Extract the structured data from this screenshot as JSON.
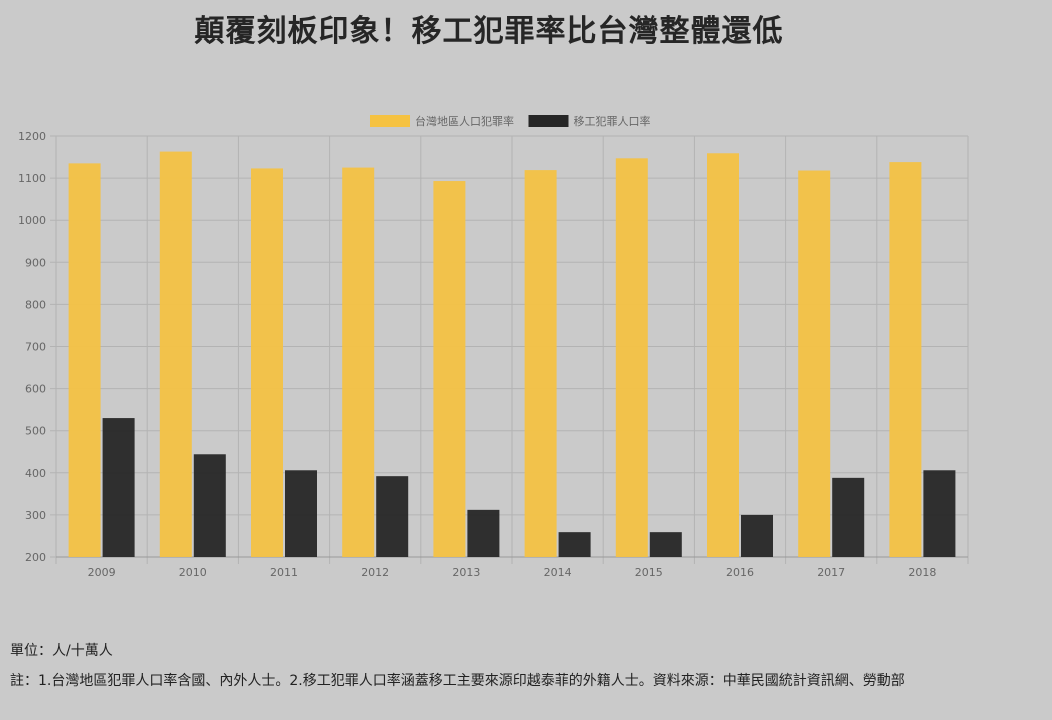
{
  "title": "顛覆刻板印象！移工犯罪率比台灣整體還低",
  "unit_note": "單位：人/十萬人",
  "source_note": "註：1.台灣地區犯罪人口率含國、內外人士。2.移工犯罪人口率涵蓋移工主要來源印越泰菲的外籍人士。資料來源：中華民國統計資訊網、勞動部",
  "chart_data": {
    "type": "bar",
    "title": "",
    "xlabel": "",
    "ylabel": "",
    "categories": [
      "2009",
      "2010",
      "2011",
      "2012",
      "2013",
      "2014",
      "2015",
      "2016",
      "2017",
      "2018"
    ],
    "series": [
      {
        "name": "台灣地區人口犯罪率",
        "color": "#f5c242",
        "values": [
          1135,
          1163,
          1123,
          1125,
          1093,
          1119,
          1147,
          1159,
          1118,
          1138
        ]
      },
      {
        "name": "移工犯罪人口率",
        "color": "#262626",
        "values": [
          530,
          444,
          406,
          392,
          312,
          259,
          259,
          300,
          388,
          406
        ]
      }
    ],
    "ylim": [
      200,
      1200
    ],
    "yticks": [
      200,
      300,
      400,
      500,
      600,
      700,
      800,
      900,
      1000,
      1100,
      1200
    ],
    "grid": true,
    "legend_position": "top-center"
  }
}
